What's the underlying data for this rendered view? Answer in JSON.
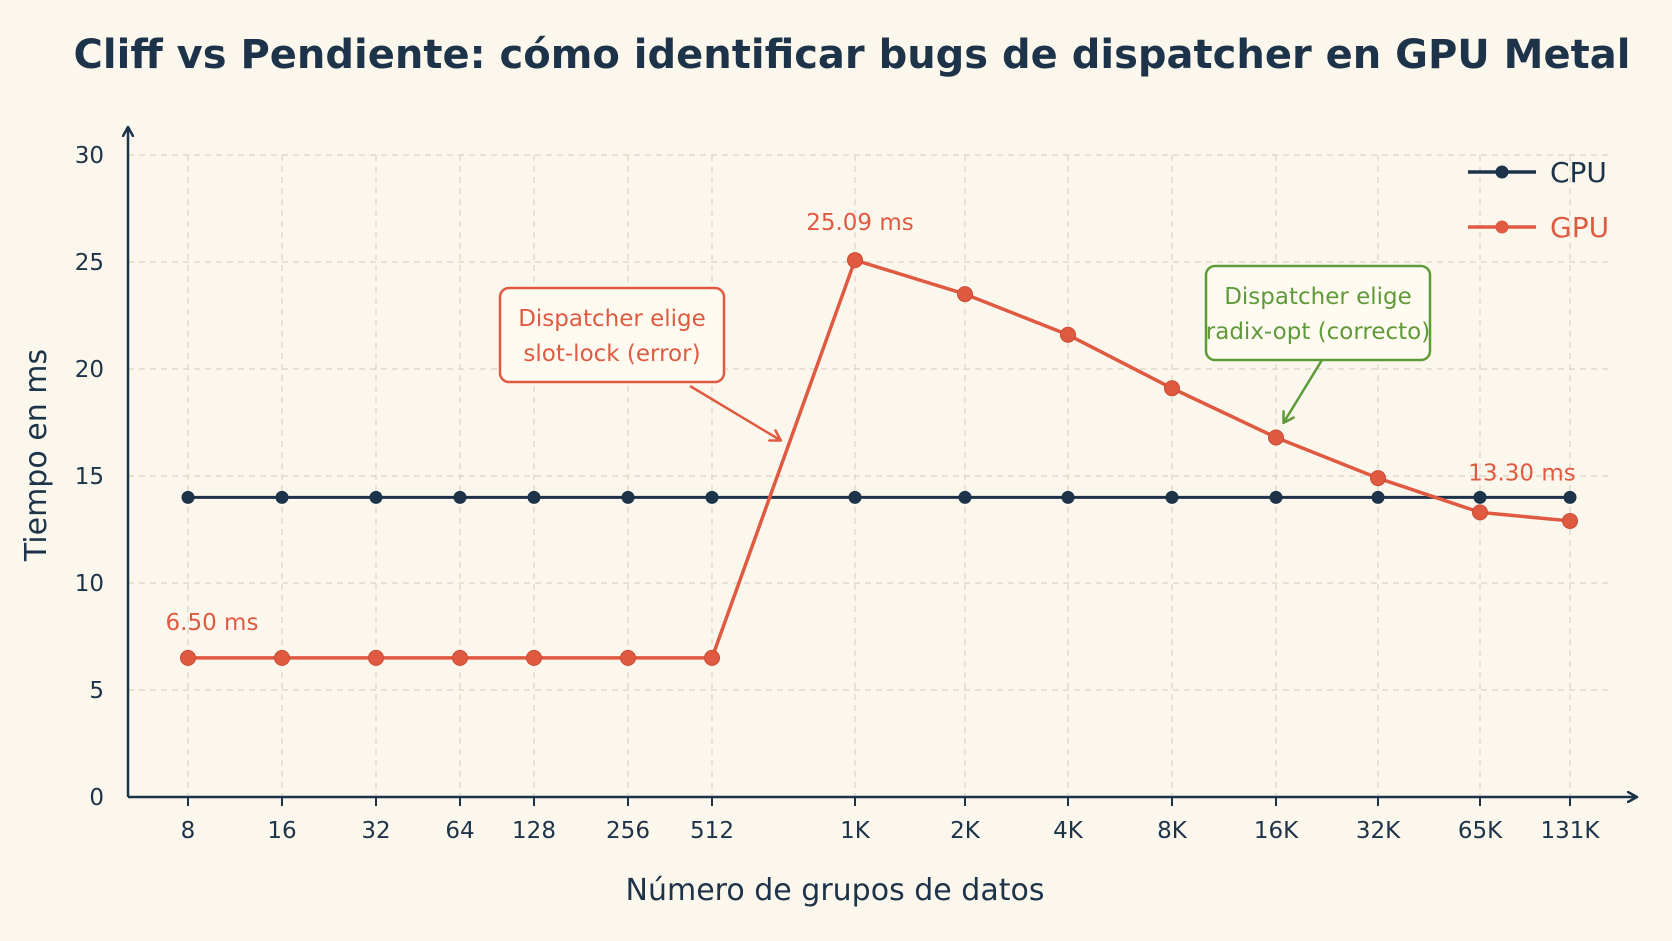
{
  "chart_data": {
    "type": "line",
    "title": "Cliff vs Pendiente: cómo identificar bugs de dispatcher en GPU Metal",
    "xlabel": "Número de grupos de datos",
    "ylabel": "Tiempo en ms",
    "ylim": [
      0,
      30
    ],
    "yticks": [
      "0",
      "5",
      "10",
      "15",
      "20",
      "25",
      "30"
    ],
    "categories": [
      "8",
      "16",
      "32",
      "64",
      "128",
      "256",
      "512",
      "1K",
      "2K",
      "4K",
      "8K",
      "16K",
      "32K",
      "65K",
      "131K"
    ],
    "series": [
      {
        "name": "CPU",
        "color": "#1d3349",
        "values": [
          14,
          14,
          14,
          14,
          14,
          14,
          14,
          14,
          14,
          14,
          14,
          14,
          14,
          14,
          14
        ]
      },
      {
        "name": "GPU",
        "color": "#e05a42",
        "values": [
          6.5,
          6.5,
          6.5,
          6.5,
          6.5,
          6.5,
          6.5,
          25.09,
          23.5,
          21.6,
          19.1,
          16.8,
          14.9,
          13.3,
          12.9
        ]
      }
    ],
    "grid": true,
    "legend_position": "top-right",
    "data_labels": [
      {
        "series": "GPU",
        "category": "8",
        "text": "6.50 ms"
      },
      {
        "series": "GPU",
        "category": "1K",
        "text": "25.09 ms"
      },
      {
        "series": "GPU",
        "category": "65K",
        "text": "13.30 ms"
      }
    ],
    "annotations": [
      {
        "lines": [
          "Dispatcher elige",
          "slot-lock (error)"
        ],
        "color": "#e05a42"
      },
      {
        "lines": [
          "Dispatcher elige",
          "radix-opt (correcto)"
        ],
        "color": "#5f9a3a"
      }
    ]
  }
}
